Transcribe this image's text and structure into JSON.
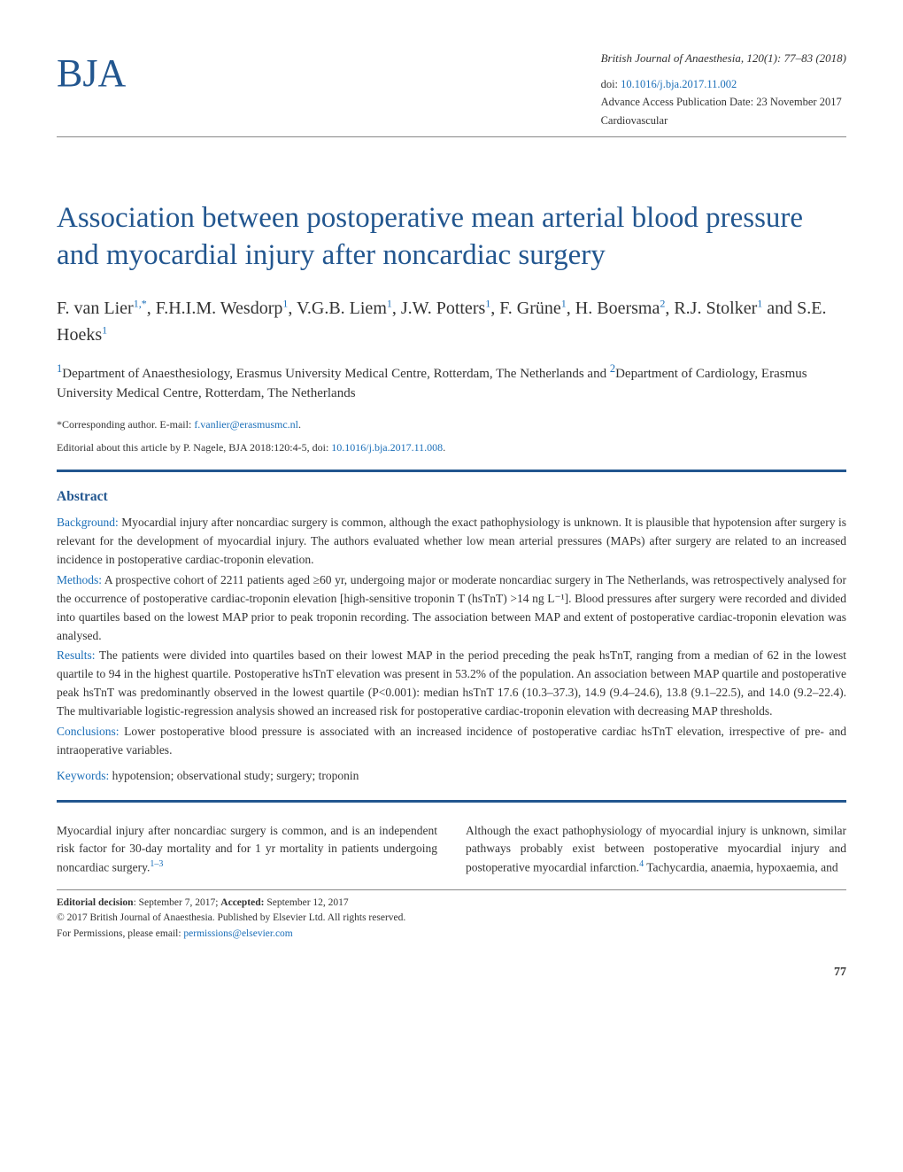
{
  "header": {
    "logo_text": "BJA",
    "journal_ref": "British Journal of Anaesthesia, 120(1): 77–83 (2018)",
    "doi_label": "doi: ",
    "doi": "10.1016/j.bja.2017.11.002",
    "advance_pub": "Advance Access Publication Date: 23 November 2017",
    "category": "Cardiovascular"
  },
  "article": {
    "title": "Association between postoperative mean arterial blood pressure and myocardial injury after noncardiac surgery",
    "authors_html": "F. van Lier<sup>1,*</sup>, F.H.I.M. Wesdorp<sup>1</sup>, V.G.B. Liem<sup>1</sup>, J.W. Potters<sup>1</sup>, F. Grüne<sup>1</sup>, H. Boersma<sup>2</sup>, R.J. Stolker<sup>1</sup> and S.E. Hoeks<sup>1</sup>",
    "affiliations_html": "<sup>1</sup>Department of Anaesthesiology, Erasmus University Medical Centre, Rotterdam, The Netherlands and <sup>2</sup>Department of Cardiology, Erasmus University Medical Centre, Rotterdam, The Netherlands",
    "corresponding_label": "*Corresponding author. E-mail: ",
    "corresponding_email": "f.vanlier@erasmusmc.nl",
    "editorial_note_pre": "Editorial about this article by P. Nagele, BJA 2018:120:4-5, doi: ",
    "editorial_doi": "10.1016/j.bja.2017.11.008"
  },
  "abstract": {
    "heading": "Abstract",
    "background_label": "Background: ",
    "background": "Myocardial injury after noncardiac surgery is common, although the exact pathophysiology is unknown. It is plausible that hypotension after surgery is relevant for the development of myocardial injury. The authors evaluated whether low mean arterial pressures (MAPs) after surgery are related to an increased incidence in postoperative cardiac-troponin elevation.",
    "methods_label": "Methods: ",
    "methods": "A prospective cohort of 2211 patients aged ≥60 yr, undergoing major or moderate noncardiac surgery in The Netherlands, was retrospectively analysed for the occurrence of postoperative cardiac-troponin elevation [high-sensitive troponin T (hsTnT) >14 ng L⁻¹]. Blood pressures after surgery were recorded and divided into quartiles based on the lowest MAP prior to peak troponin recording. The association between MAP and extent of postoperative cardiac-troponin elevation was analysed.",
    "results_label": "Results: ",
    "results": "The patients were divided into quartiles based on their lowest MAP in the period preceding the peak hsTnT, ranging from a median of 62 in the lowest quartile to 94 in the highest quartile. Postoperative hsTnT elevation was present in 53.2% of the population. An association between MAP quartile and postoperative peak hsTnT was predominantly observed in the lowest quartile (P<0.001): median hsTnT 17.6 (10.3–37.3), 14.9 (9.4–24.6), 13.8 (9.1–22.5), and 14.0 (9.2–22.4). The multivariable logistic-regression analysis showed an increased risk for postoperative cardiac-troponin elevation with decreasing MAP thresholds.",
    "conclusions_label": "Conclusions: ",
    "conclusions": "Lower postoperative blood pressure is associated with an increased incidence of postoperative cardiac hsTnT elevation, irrespective of pre- and intraoperative variables.",
    "keywords_label": "Keywords: ",
    "keywords": "hypotension; observational study; surgery; troponin"
  },
  "body": {
    "col1": "Myocardial injury after noncardiac surgery is common, and is an independent risk factor for 30-day mortality and for 1 yr mortality in patients undergoing noncardiac surgery.",
    "col1_ref": "1–3",
    "col2": "Although the exact pathophysiology of myocardial injury is unknown, similar pathways probably exist between postoperative myocardial injury and postoperative myocardial infarction.",
    "col2_ref": "4",
    "col2_tail": " Tachycardia, anaemia, hypoxaemia, and"
  },
  "footer": {
    "editorial_decision": "Editorial decision: September 7, 2017; Accepted: September 12, 2017",
    "copyright": "© 2017 British Journal of Anaesthesia. Published by Elsevier Ltd. All rights reserved.",
    "permissions_label": "For Permissions, please email: ",
    "permissions_email": "permissions@elsevier.com",
    "page_number": "77"
  },
  "colors": {
    "brand_blue": "#22568f",
    "link_blue": "#1a6eb8",
    "text": "#333333",
    "rule_grey": "#888888",
    "background": "#ffffff"
  }
}
